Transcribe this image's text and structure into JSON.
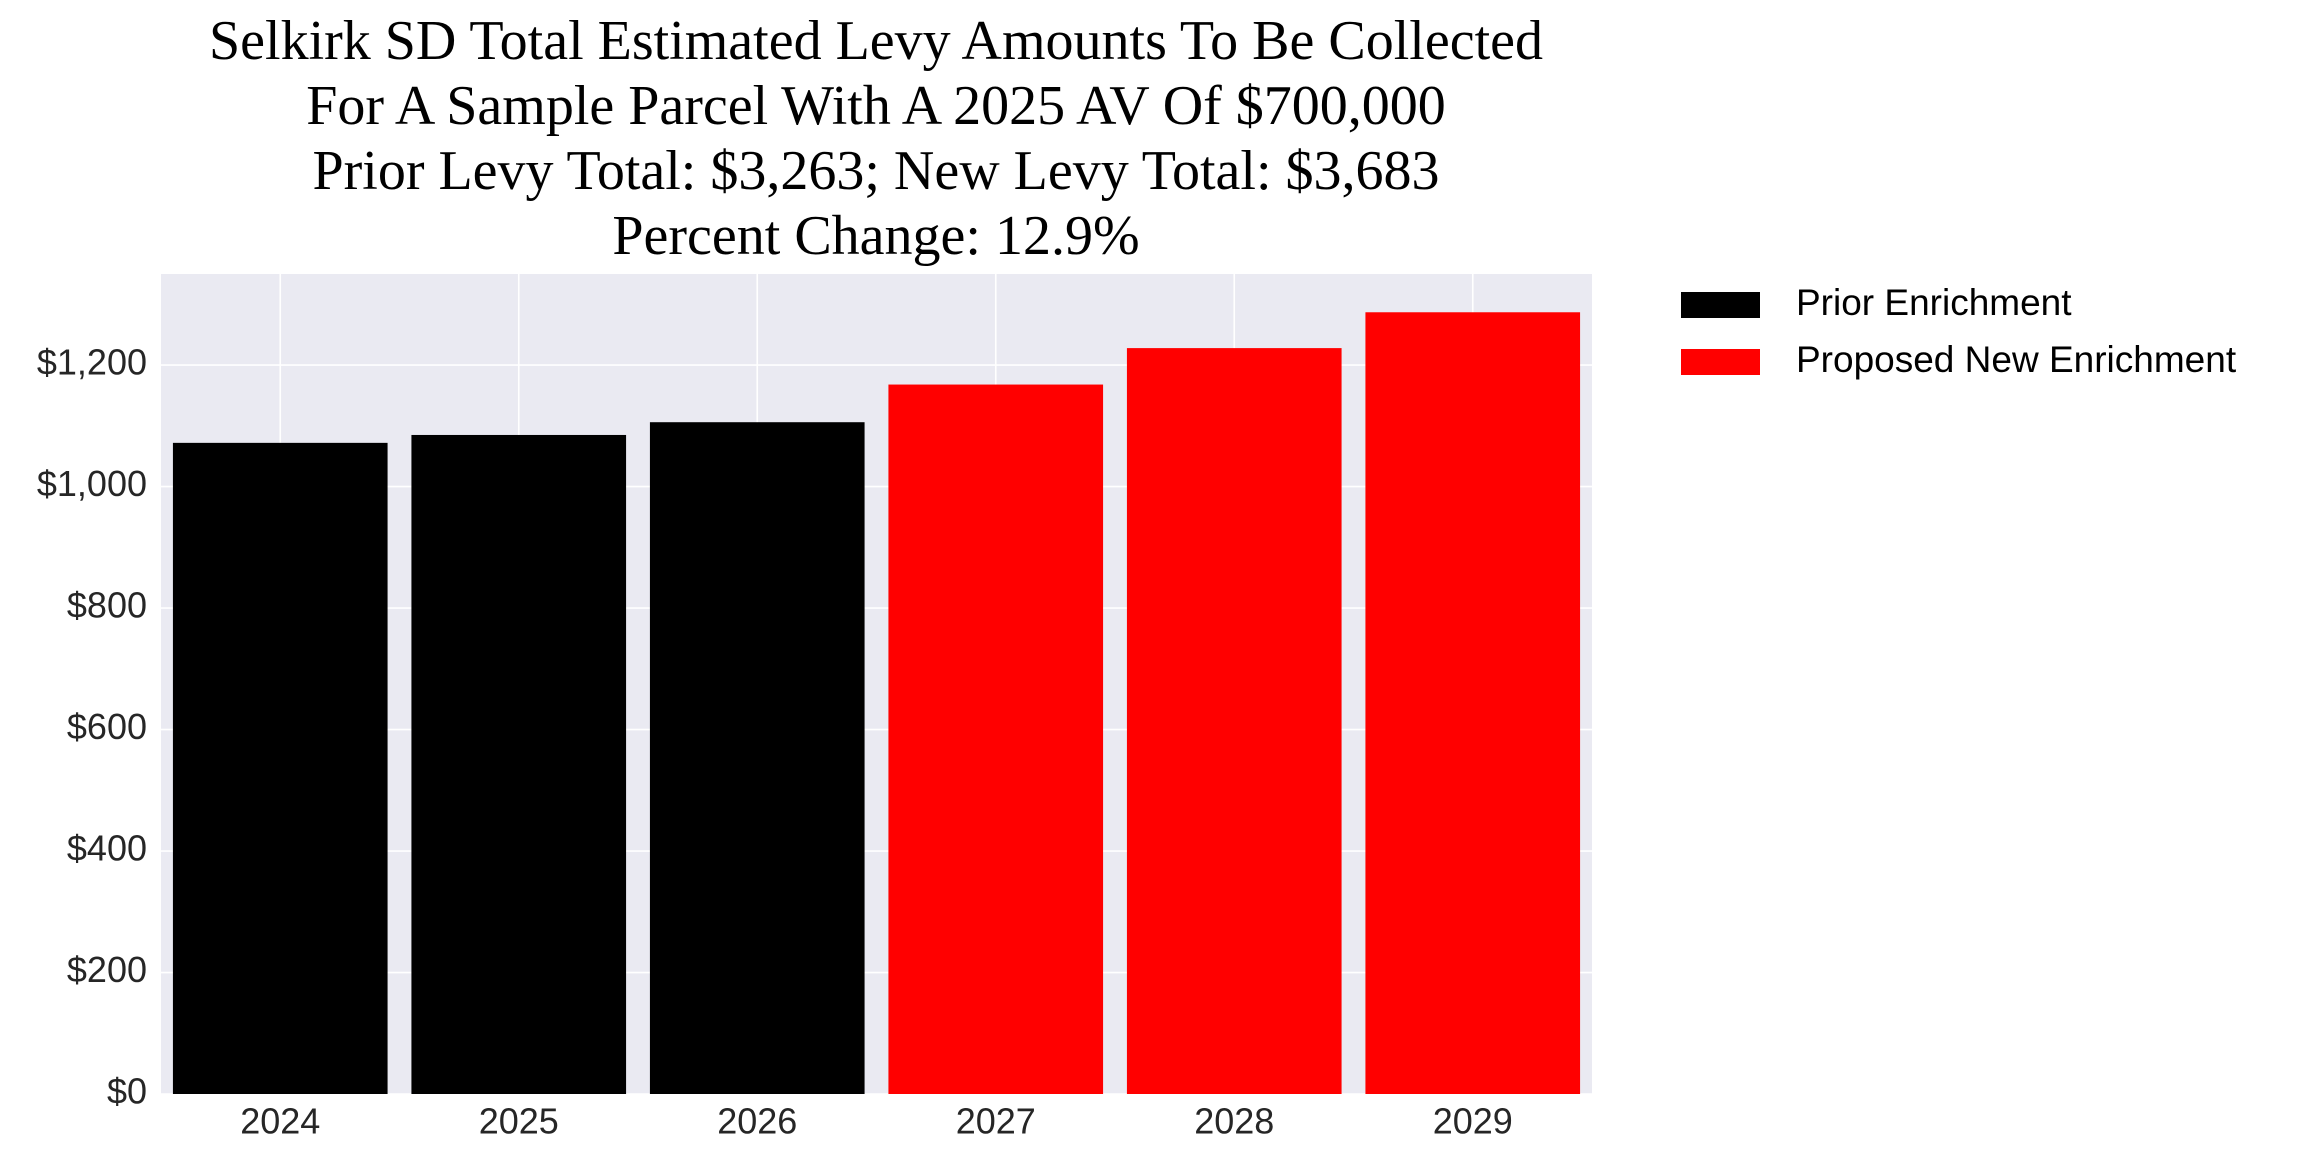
{
  "chart_data": {
    "type": "bar",
    "title": [
      "Selkirk SD Total Estimated Levy Amounts To Be Collected",
      "For A Sample Parcel With A 2025 AV Of $700,000",
      "Prior Levy Total:  $3,263; New Levy Total: $3,683",
      "Percent Change: 12.9%"
    ],
    "categories": [
      "2024",
      "2025",
      "2026",
      "2027",
      "2028",
      "2029"
    ],
    "series": [
      {
        "name": "Prior Enrichment",
        "color": "#000000",
        "values": [
          1072,
          1085,
          1106,
          null,
          null,
          null
        ]
      },
      {
        "name": "Proposed New Enrichment",
        "color": "#ff0000",
        "values": [
          null,
          null,
          null,
          1168,
          1228,
          1287
        ]
      }
    ],
    "ylim": [
      0,
      1350
    ],
    "yticks": [
      {
        "value": 0,
        "label": "$0"
      },
      {
        "value": 200,
        "label": "$200"
      },
      {
        "value": 400,
        "label": "$400"
      },
      {
        "value": 600,
        "label": "$600"
      },
      {
        "value": 800,
        "label": "$800"
      },
      {
        "value": 1000,
        "label": "$1,000"
      },
      {
        "value": 1200,
        "label": "$1,200"
      }
    ],
    "grid": true,
    "legend": "outside-upper-right"
  }
}
